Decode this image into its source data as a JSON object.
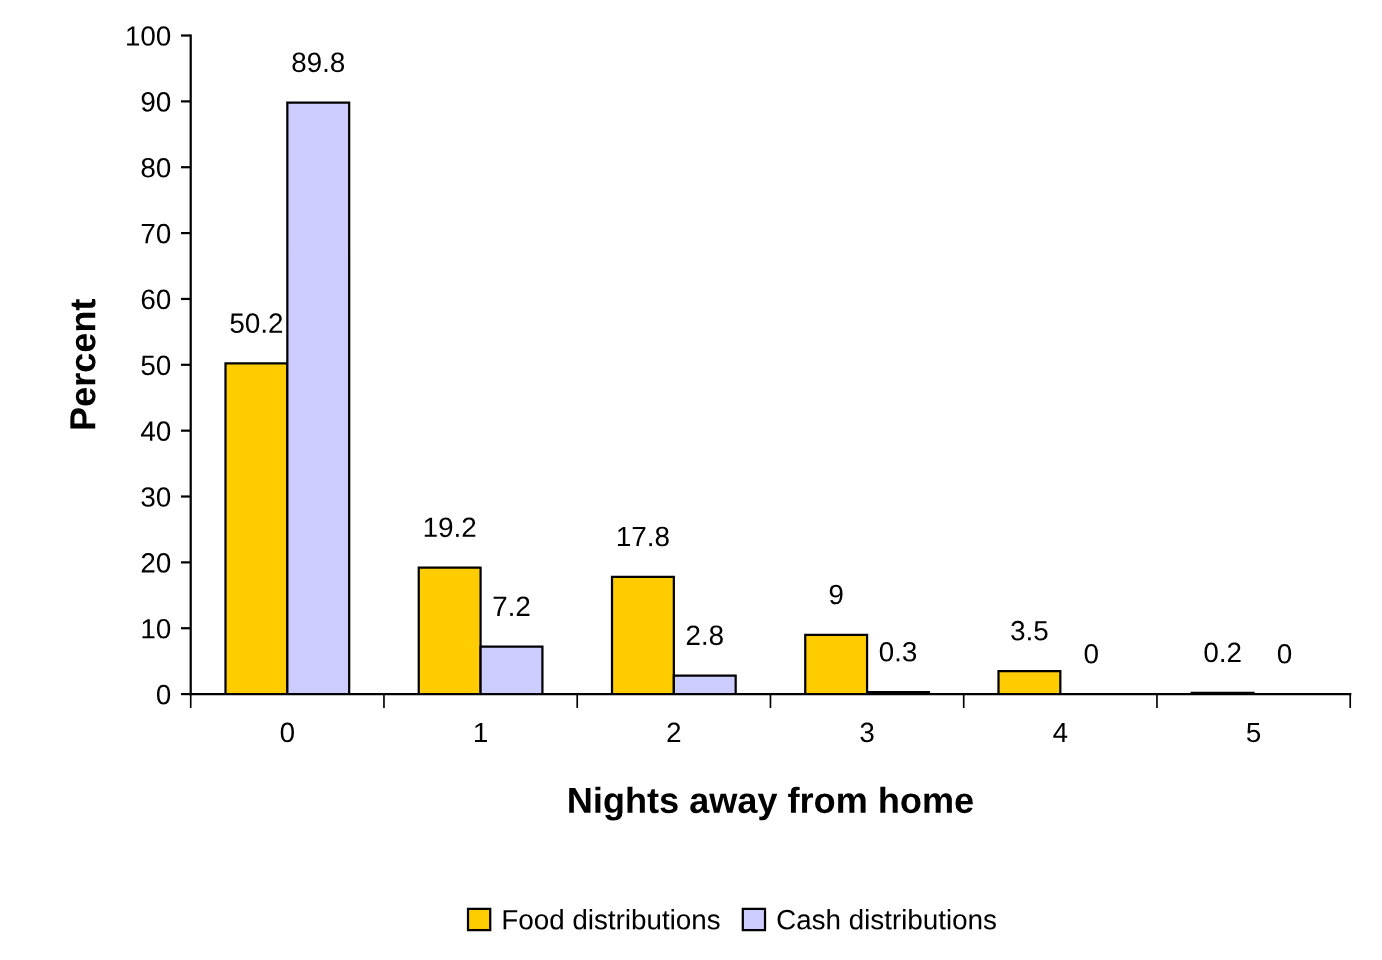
{
  "chart_data": {
    "type": "bar",
    "xlabel": "Nights away from home",
    "ylabel": "Percent",
    "categories": [
      "0",
      "1",
      "2",
      "3",
      "4",
      "5"
    ],
    "series": [
      {
        "name": "Food distributions",
        "color": "#ffcc00",
        "values": [
          50.2,
          19.2,
          17.8,
          9,
          3.5,
          0.2
        ]
      },
      {
        "name": "Cash distributions",
        "color": "#ccccff",
        "values": [
          89.8,
          7.2,
          2.8,
          0.3,
          0,
          0
        ]
      }
    ],
    "ylim": [
      0,
      100
    ],
    "yticks": [
      0,
      10,
      20,
      30,
      40,
      50,
      60,
      70,
      80,
      90,
      100
    ],
    "grid": false,
    "legend": "bottom",
    "data_labels": true
  }
}
